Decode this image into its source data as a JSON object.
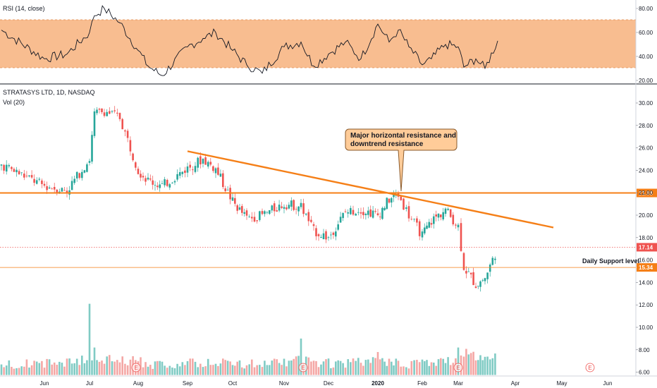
{
  "rsi_title": "RSI (14, close)",
  "main_title": "STRATASYS LTD, 1D, NASDAQ",
  "vol_title": "Vol (20)",
  "rsi_axis": [
    "80.00",
    "60.00",
    "40.00",
    "20.00"
  ],
  "price_axis": [
    "30.00",
    "28.00",
    "26.00",
    "24.00",
    "22.00",
    "20.00",
    "18.00",
    "16.00",
    "14.00",
    "12.00",
    "10.00",
    "8.00",
    "6.00"
  ],
  "x_axis": [
    "Jun",
    "Jul",
    "Aug",
    "Sep",
    "Oct",
    "Nov",
    "Dec",
    "2020",
    "Feb",
    "Mar",
    "Apr",
    "May",
    "Jun"
  ],
  "annotations": {
    "callout_line1": "Major horizontal resistance and",
    "callout_line2": "downtrend resistance",
    "support_label": "Daily Support level"
  },
  "levels": {
    "resistance": "21.98",
    "last_price": "17.14",
    "support": "15.34"
  },
  "earnings_marker": "E",
  "colors": {
    "up": "#26a69a",
    "down": "#ef5350",
    "vol_up": "#80cbc4",
    "vol_down": "#f4a7a5",
    "orange": "#f57f17",
    "rsi_band": "#f8b98a",
    "callout_fill": "#ffcc99"
  },
  "chart_data": [
    {
      "type": "line",
      "title": "RSI (14, close)",
      "ylim": [
        20,
        85
      ],
      "band": [
        30,
        70
      ],
      "x": [
        "May 20",
        "Jun",
        "Jun 15",
        "Jul",
        "Jul 5",
        "Jul 10",
        "Jul 20",
        "Aug",
        "Aug 5",
        "Aug 15",
        "Sep",
        "Sep 10",
        "Sep 20",
        "Oct",
        "Oct 10",
        "Oct 20",
        "Nov",
        "Nov 10",
        "Nov 20",
        "Dec",
        "Dec 10",
        "Dec 20",
        "2020",
        "Jan 10",
        "Jan 15",
        "Jan 20",
        "Feb",
        "Feb 5",
        "Feb 15",
        "Mar",
        "Mar 5",
        "Mar 10",
        "Mar 15",
        "Mar 20"
      ],
      "values": [
        62,
        38,
        42,
        60,
        74,
        80,
        68,
        45,
        32,
        24,
        48,
        55,
        60,
        45,
        33,
        26,
        48,
        52,
        32,
        42,
        52,
        38,
        67,
        52,
        62,
        48,
        33,
        38,
        50,
        48,
        31,
        38,
        30,
        53
      ]
    },
    {
      "type": "candlestick",
      "title": "STRATASYS LTD, 1D, NASDAQ",
      "ylim": [
        5.5,
        31
      ],
      "x": [
        "May 20",
        "Jun",
        "Jun 15",
        "Jul",
        "Jul 5",
        "Jul 10",
        "Jul 20",
        "Aug",
        "Aug 5",
        "Aug 15",
        "Sep",
        "Sep 10",
        "Sep 20",
        "Oct",
        "Oct 10",
        "Oct 20",
        "Nov",
        "Nov 10",
        "Nov 20",
        "Dec",
        "Dec 10",
        "Dec 20",
        "2020",
        "Jan 10",
        "Jan 15",
        "Jan 20",
        "Feb",
        "Feb 5",
        "Feb 15",
        "Mar",
        "Mar 5",
        "Mar 10",
        "Mar 15",
        "Mar 20"
      ],
      "close": [
        24.5,
        22.6,
        22.2,
        25.0,
        29.0,
        29.3,
        28.7,
        24.0,
        23.1,
        22.6,
        24.2,
        25.0,
        24.1,
        21.2,
        19.7,
        20.0,
        21.0,
        20.8,
        18.6,
        18.0,
        20.3,
        20.5,
        20.0,
        21.4,
        21.8,
        20.0,
        18.2,
        19.5,
        20.5,
        19.0,
        15.4,
        13.8,
        14.4,
        17.1
      ],
      "volume": [
        6.5,
        6.6,
        6.7,
        7.0,
        7.2,
        7.0,
        6.8,
        6.8,
        6.6,
        6.5,
        6.6,
        6.6,
        6.7,
        6.6,
        6.5,
        6.7,
        6.6,
        7.0,
        6.7,
        6.6,
        6.6,
        6.7,
        6.8,
        6.7,
        6.6,
        6.6,
        6.7,
        6.6,
        6.8,
        7.0,
        7.5,
        7.3,
        7.0,
        7.2
      ],
      "spikes": [
        {
          "x": "Jul",
          "volume": 12.1
        },
        {
          "x": "Jul 5",
          "volume": 8.2
        },
        {
          "x": "Nov 10",
          "volume": 9.0
        },
        {
          "x": "2020",
          "volume": 7.8
        },
        {
          "x": "Mar",
          "volume": 8.2
        }
      ],
      "trendline": [
        {
          "x": "Sep",
          "y": 25.7
        },
        {
          "x": "May",
          "y": 18.9
        }
      ],
      "hlines": [
        21.98,
        17.14,
        15.34
      ]
    }
  ]
}
